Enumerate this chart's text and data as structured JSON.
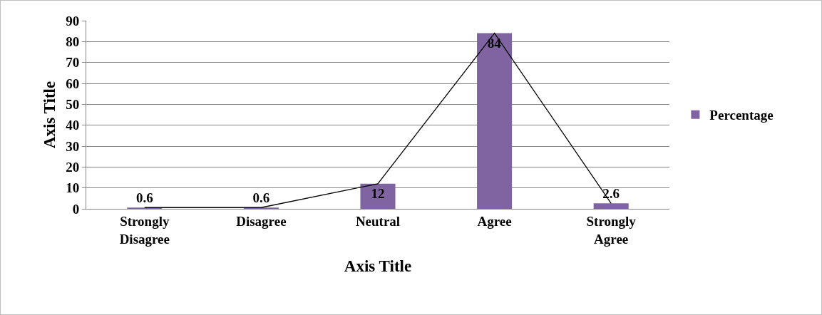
{
  "chart_data": {
    "type": "bar",
    "xlabel": "Axis Title",
    "ylabel": "Axis Title",
    "categories": [
      "Strongly Disagree",
      "Disagree",
      "Neutral",
      "Agree",
      "Strongly Agree"
    ],
    "series": [
      {
        "name": "Percentage",
        "color": "#8064a2",
        "values": [
          0.6,
          0.6,
          12,
          84,
          2.6
        ],
        "value_labels": [
          "0.6",
          "0.6",
          "12",
          "84",
          "2.6"
        ]
      },
      {
        "type": "line",
        "color": "#000000",
        "values": [
          0.6,
          0.6,
          12,
          84,
          2.6
        ]
      }
    ],
    "ylim": [
      0,
      90
    ],
    "yticks": [
      0,
      10,
      20,
      30,
      40,
      50,
      60,
      70,
      80,
      90
    ],
    "grid": "y",
    "legend": "right",
    "marker": "none",
    "line_style": "solid"
  }
}
